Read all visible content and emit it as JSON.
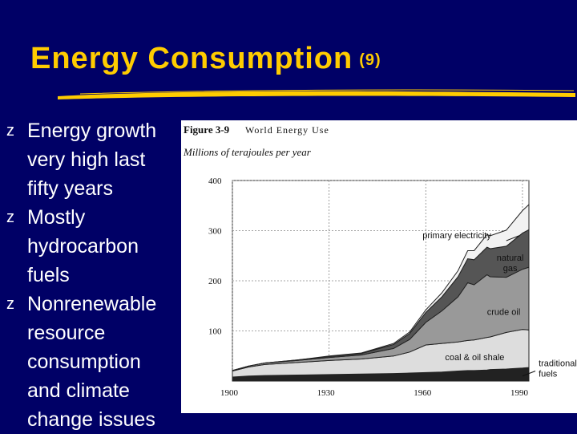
{
  "slide": {
    "title": "Energy Consumption",
    "title_number": "(9)",
    "bullet_symbol": "z",
    "bullets": [
      "Energy growth very high last fifty years",
      "Mostly hydrocarbon fuels",
      "Nonrenewable resource consumption and climate change issues"
    ],
    "colors": {
      "background": "#000066",
      "title": "#FFCC00",
      "text": "#FFFFFF"
    }
  },
  "chart_data": {
    "type": "area",
    "figure_label": "Figure 3-9",
    "title": "World Energy Use",
    "ylabel": "Millions of terajoules per year",
    "ylim": [
      0,
      400
    ],
    "xlim": [
      1900,
      1992
    ],
    "yticks": [
      "100",
      "200",
      "300",
      "400"
    ],
    "xticks": [
      "1900",
      "1930",
      "1960",
      "1990"
    ],
    "x": [
      1900,
      1905,
      1910,
      1920,
      1930,
      1940,
      1950,
      1955,
      1960,
      1965,
      1970,
      1973,
      1975,
      1979,
      1980,
      1985,
      1990,
      1992
    ],
    "series": [
      {
        "name": "traditional fuels",
        "fill": "#222222",
        "values": [
          8,
          10,
          11,
          12,
          13,
          14,
          15,
          16,
          17,
          18,
          20,
          21,
          21,
          22,
          23,
          24,
          26,
          27
        ]
      },
      {
        "name": "coal & oil shale",
        "fill": "#dddddd",
        "values": [
          12,
          18,
          22,
          25,
          28,
          30,
          35,
          42,
          55,
          57,
          58,
          60,
          61,
          65,
          65,
          73,
          77,
          75
        ]
      },
      {
        "name": "crude oil",
        "fill": "#999999",
        "values": [
          1,
          2,
          3,
          4,
          6,
          8,
          15,
          25,
          45,
          65,
          90,
          115,
          110,
          125,
          120,
          110,
          120,
          125
        ]
      },
      {
        "name": "natural gas",
        "fill": "#555555",
        "values": [
          0,
          0,
          0,
          1,
          2,
          3,
          8,
          12,
          20,
          28,
          40,
          48,
          50,
          55,
          56,
          62,
          72,
          75
        ]
      },
      {
        "name": "primary electricity",
        "fill": "#f2f2f2",
        "values": [
          0,
          0,
          0,
          0,
          1,
          1,
          2,
          3,
          5,
          8,
          12,
          16,
          18,
          25,
          26,
          32,
          45,
          50
        ]
      }
    ]
  }
}
